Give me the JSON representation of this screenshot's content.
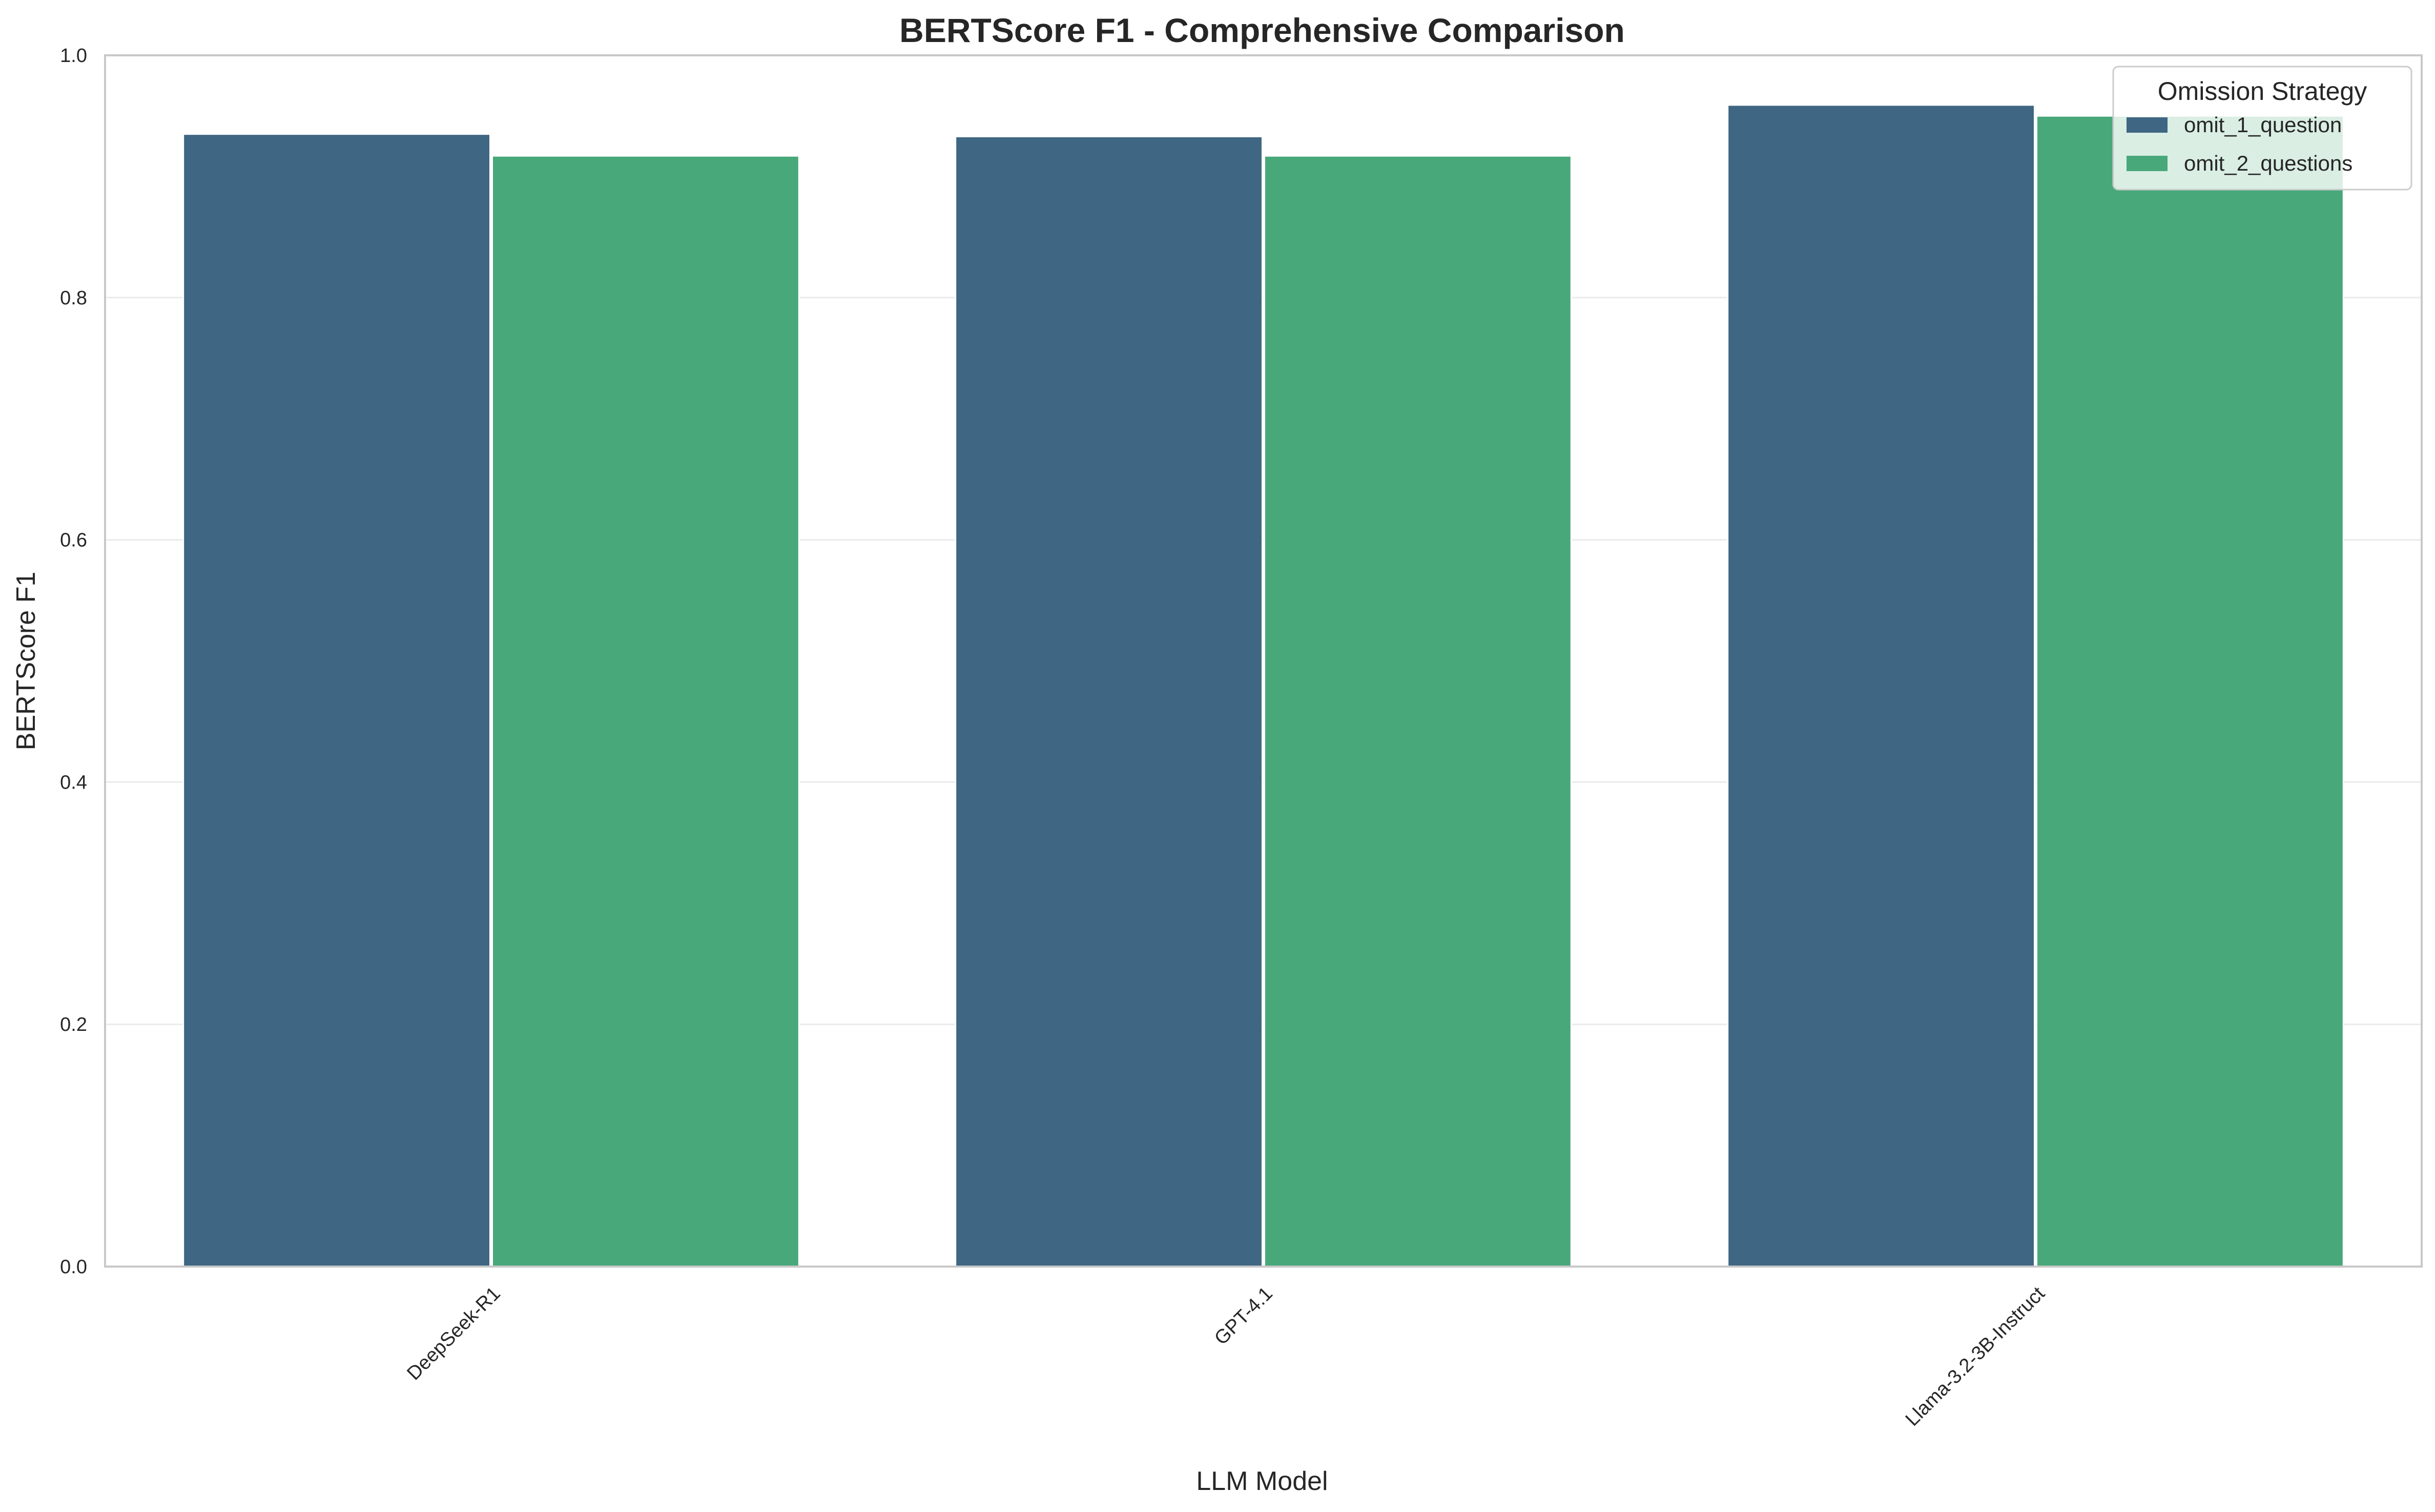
{
  "chart_data": {
    "type": "bar",
    "title": "BERTScore F1 - Comprehensive Comparison",
    "xlabel": "LLM Model",
    "ylabel": "BERTScore F1",
    "categories": [
      "DeepSeek-R1",
      "GPT-4.1",
      "Llama-3.2-3B-Instruct"
    ],
    "series": [
      {
        "name": "omit_1_question",
        "color": "#3f6683",
        "values": [
          0.935,
          0.933,
          0.959
        ]
      },
      {
        "name": "omit_2_questions",
        "color": "#48a87a",
        "values": [
          0.917,
          0.917,
          0.95
        ]
      }
    ],
    "ylim": [
      0,
      1.0
    ],
    "yticks": [
      "0.0",
      "0.2",
      "0.4",
      "0.6",
      "0.8",
      "1.0"
    ],
    "grid": true,
    "legend": {
      "title": "Omission Strategy",
      "placement": "top-right"
    }
  }
}
